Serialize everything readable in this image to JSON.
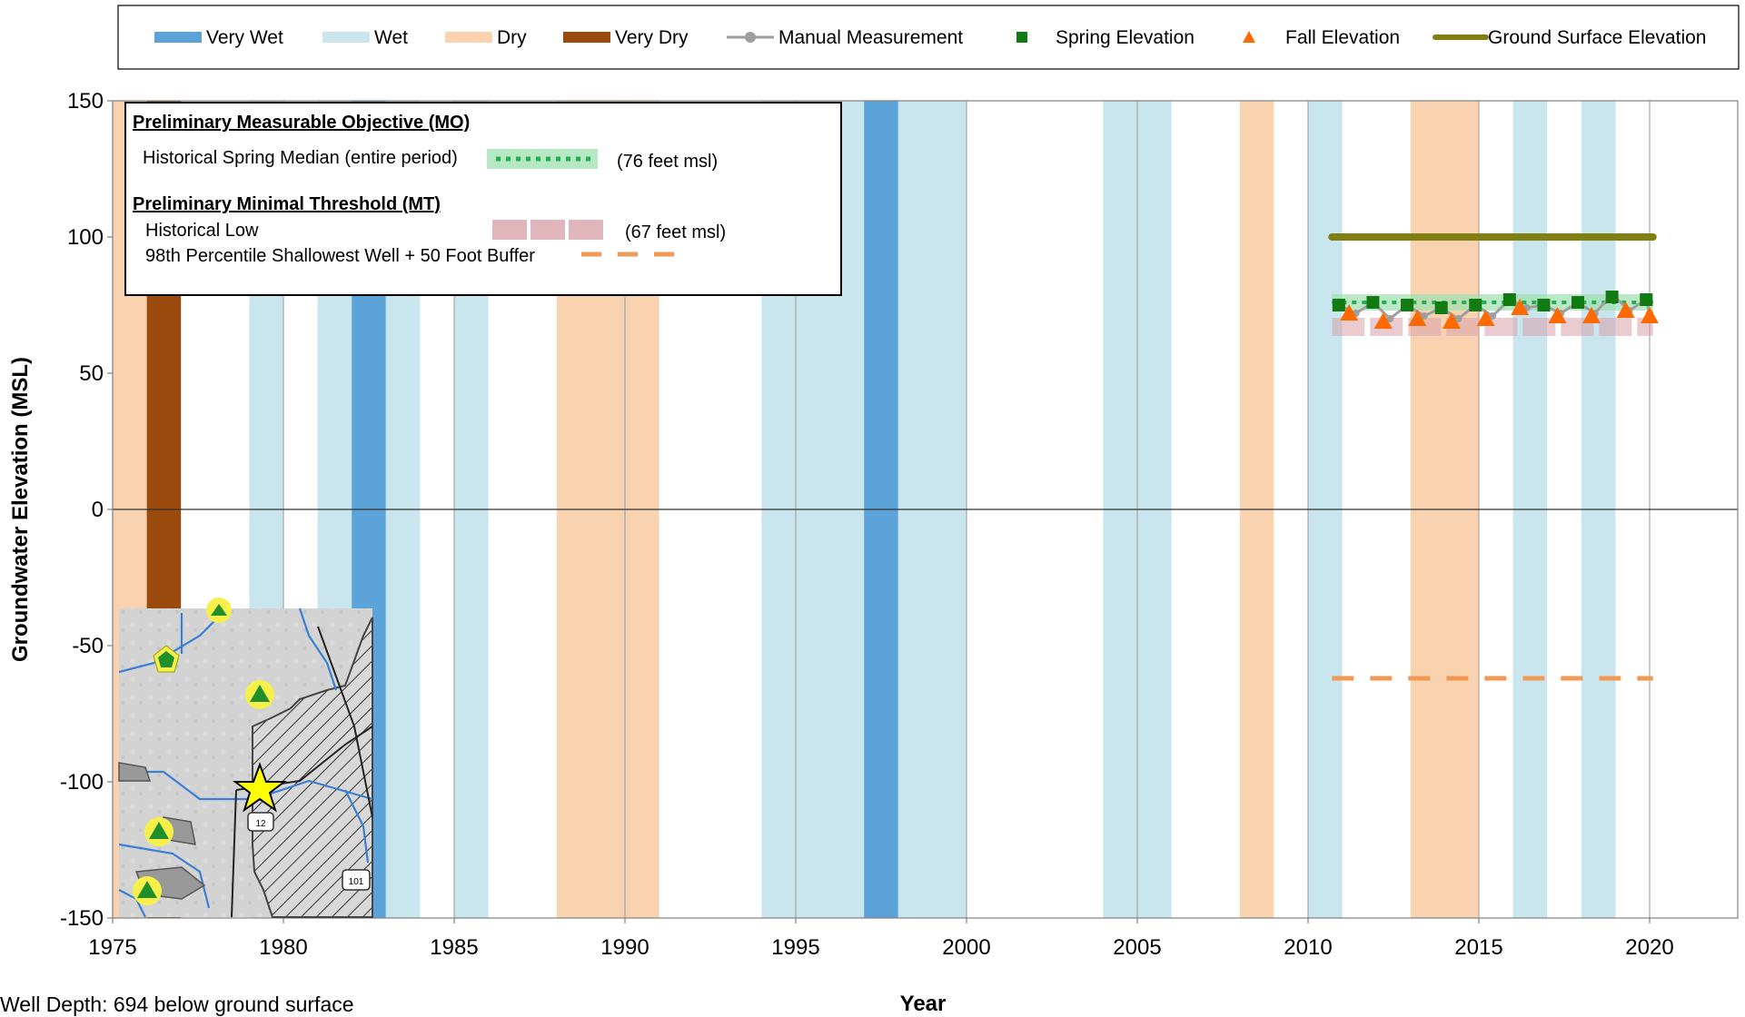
{
  "chart_data": {
    "type": "scatter",
    "title": "",
    "xlabel": "Year",
    "ylabel": "Groundwater Elevation (MSL)",
    "xlim": [
      1975,
      2023
    ],
    "ylim": [
      -150,
      150
    ],
    "x_ticks": [
      1975,
      1980,
      1985,
      1990,
      1995,
      2000,
      2005,
      2010,
      2015,
      2020
    ],
    "y_ticks": [
      -150,
      -100,
      -50,
      0,
      50,
      100,
      150
    ],
    "grid": "vertical",
    "legend_placement": "top",
    "legend": [
      "Very Wet",
      "Wet",
      "Dry",
      "Very Dry",
      "Manual Measurement",
      "Spring Elevation",
      "Fall Elevation",
      "Ground Surface Elevation"
    ],
    "water_year_bands": [
      {
        "type": "Dry",
        "start": 1975,
        "end": 1976
      },
      {
        "type": "Very Dry",
        "start": 1976,
        "end": 1977
      },
      {
        "type": "Wet",
        "start": 1979,
        "end": 1980
      },
      {
        "type": "Wet",
        "start": 1981,
        "end": 1982
      },
      {
        "type": "Very Wet",
        "start": 1982,
        "end": 1983
      },
      {
        "type": "Wet",
        "start": 1983,
        "end": 1984
      },
      {
        "type": "Wet",
        "start": 1985,
        "end": 1986
      },
      {
        "type": "Dry",
        "start": 1988,
        "end": 1991
      },
      {
        "type": "Wet",
        "start": 1994,
        "end": 1997
      },
      {
        "type": "Very Wet",
        "start": 1997,
        "end": 1998
      },
      {
        "type": "Wet",
        "start": 1998,
        "end": 2000
      },
      {
        "type": "Wet",
        "start": 2004,
        "end": 2006
      },
      {
        "type": "Dry",
        "start": 2008,
        "end": 2009
      },
      {
        "type": "Wet",
        "start": 2010,
        "end": 2011
      },
      {
        "type": "Dry",
        "start": 2013,
        "end": 2015
      },
      {
        "type": "Wet",
        "start": 2016,
        "end": 2017
      },
      {
        "type": "Wet",
        "start": 2018,
        "end": 2019
      }
    ],
    "series": [
      {
        "name": "Manual Measurement",
        "x": [
          2010.9,
          2011.4,
          2011.9,
          2012.4,
          2012.9,
          2013.4,
          2013.9,
          2014.4,
          2014.9,
          2015.4,
          2015.9,
          2016.4,
          2016.9,
          2017.4,
          2017.9,
          2018.4,
          2018.9,
          2019.4,
          2019.9,
          2020.0
        ],
        "y": [
          75,
          72,
          76,
          70,
          75,
          71,
          74,
          70,
          75,
          71,
          77,
          74,
          75,
          72,
          76,
          72,
          79,
          73,
          77,
          72
        ]
      },
      {
        "name": "Spring Elevation",
        "x": [
          2010.9,
          2011.9,
          2012.9,
          2013.9,
          2014.9,
          2015.9,
          2016.9,
          2017.9,
          2018.9,
          2019.9
        ],
        "y": [
          75,
          76,
          75,
          74,
          75,
          77,
          75,
          76,
          78,
          77
        ]
      },
      {
        "name": "Fall Elevation",
        "x": [
          2011.2,
          2012.2,
          2013.2,
          2014.2,
          2015.2,
          2016.2,
          2017.3,
          2018.3,
          2019.3,
          2020.0
        ],
        "y": [
          72,
          69,
          70,
          69,
          70,
          74,
          71,
          71,
          73,
          71
        ]
      },
      {
        "name": "Ground Surface Elevation",
        "x": [
          2010.7,
          2020.1
        ],
        "y": [
          100,
          100
        ]
      },
      {
        "name": "Historical Spring Median (entire period)",
        "x": [
          2010.7,
          2020.1
        ],
        "y": [
          76,
          76
        ]
      },
      {
        "name": "Historical Low",
        "x": [
          2010.7,
          2020.1
        ],
        "y": [
          67,
          67
        ]
      },
      {
        "name": "98th Percentile Shallowest Well + 50 Foot Buffer",
        "x": [
          2010.7,
          2020.1
        ],
        "y": [
          -62,
          -62
        ]
      }
    ],
    "annotation_box": {
      "mo_heading": "Preliminary Measurable Objective (MO)",
      "mo_label": "Historical Spring Median (entire period)",
      "mo_value": "(76 feet msl)",
      "mt_heading": "Preliminary Minimal Threshold (MT)",
      "mt_label1": "Historical Low",
      "mt_value1": "(67 feet msl)",
      "mt_label2": "98th Percentile Shallowest Well + 50 Foot Buffer"
    },
    "footer": "Well Depth:  694 below ground surface"
  },
  "colors": {
    "very_wet": "#5ba3d9",
    "wet": "#c9e5ee",
    "dry": "#f9d3b0",
    "very_dry": "#9a4a0c",
    "manual": "#9e9e9e",
    "spring": "#117a11",
    "fall": "#ff6a00",
    "ground": "#7f7f12",
    "mo_line": "#22b14c",
    "mt_line": "#d9a3ab",
    "buffer_line": "#f19a55"
  },
  "map_inset": {
    "icons": [
      "pentagon-well-icon",
      "triangle-well-icon",
      "star-well-icon",
      "route-shield-icon"
    ],
    "route_labels": [
      "12",
      "101"
    ]
  }
}
